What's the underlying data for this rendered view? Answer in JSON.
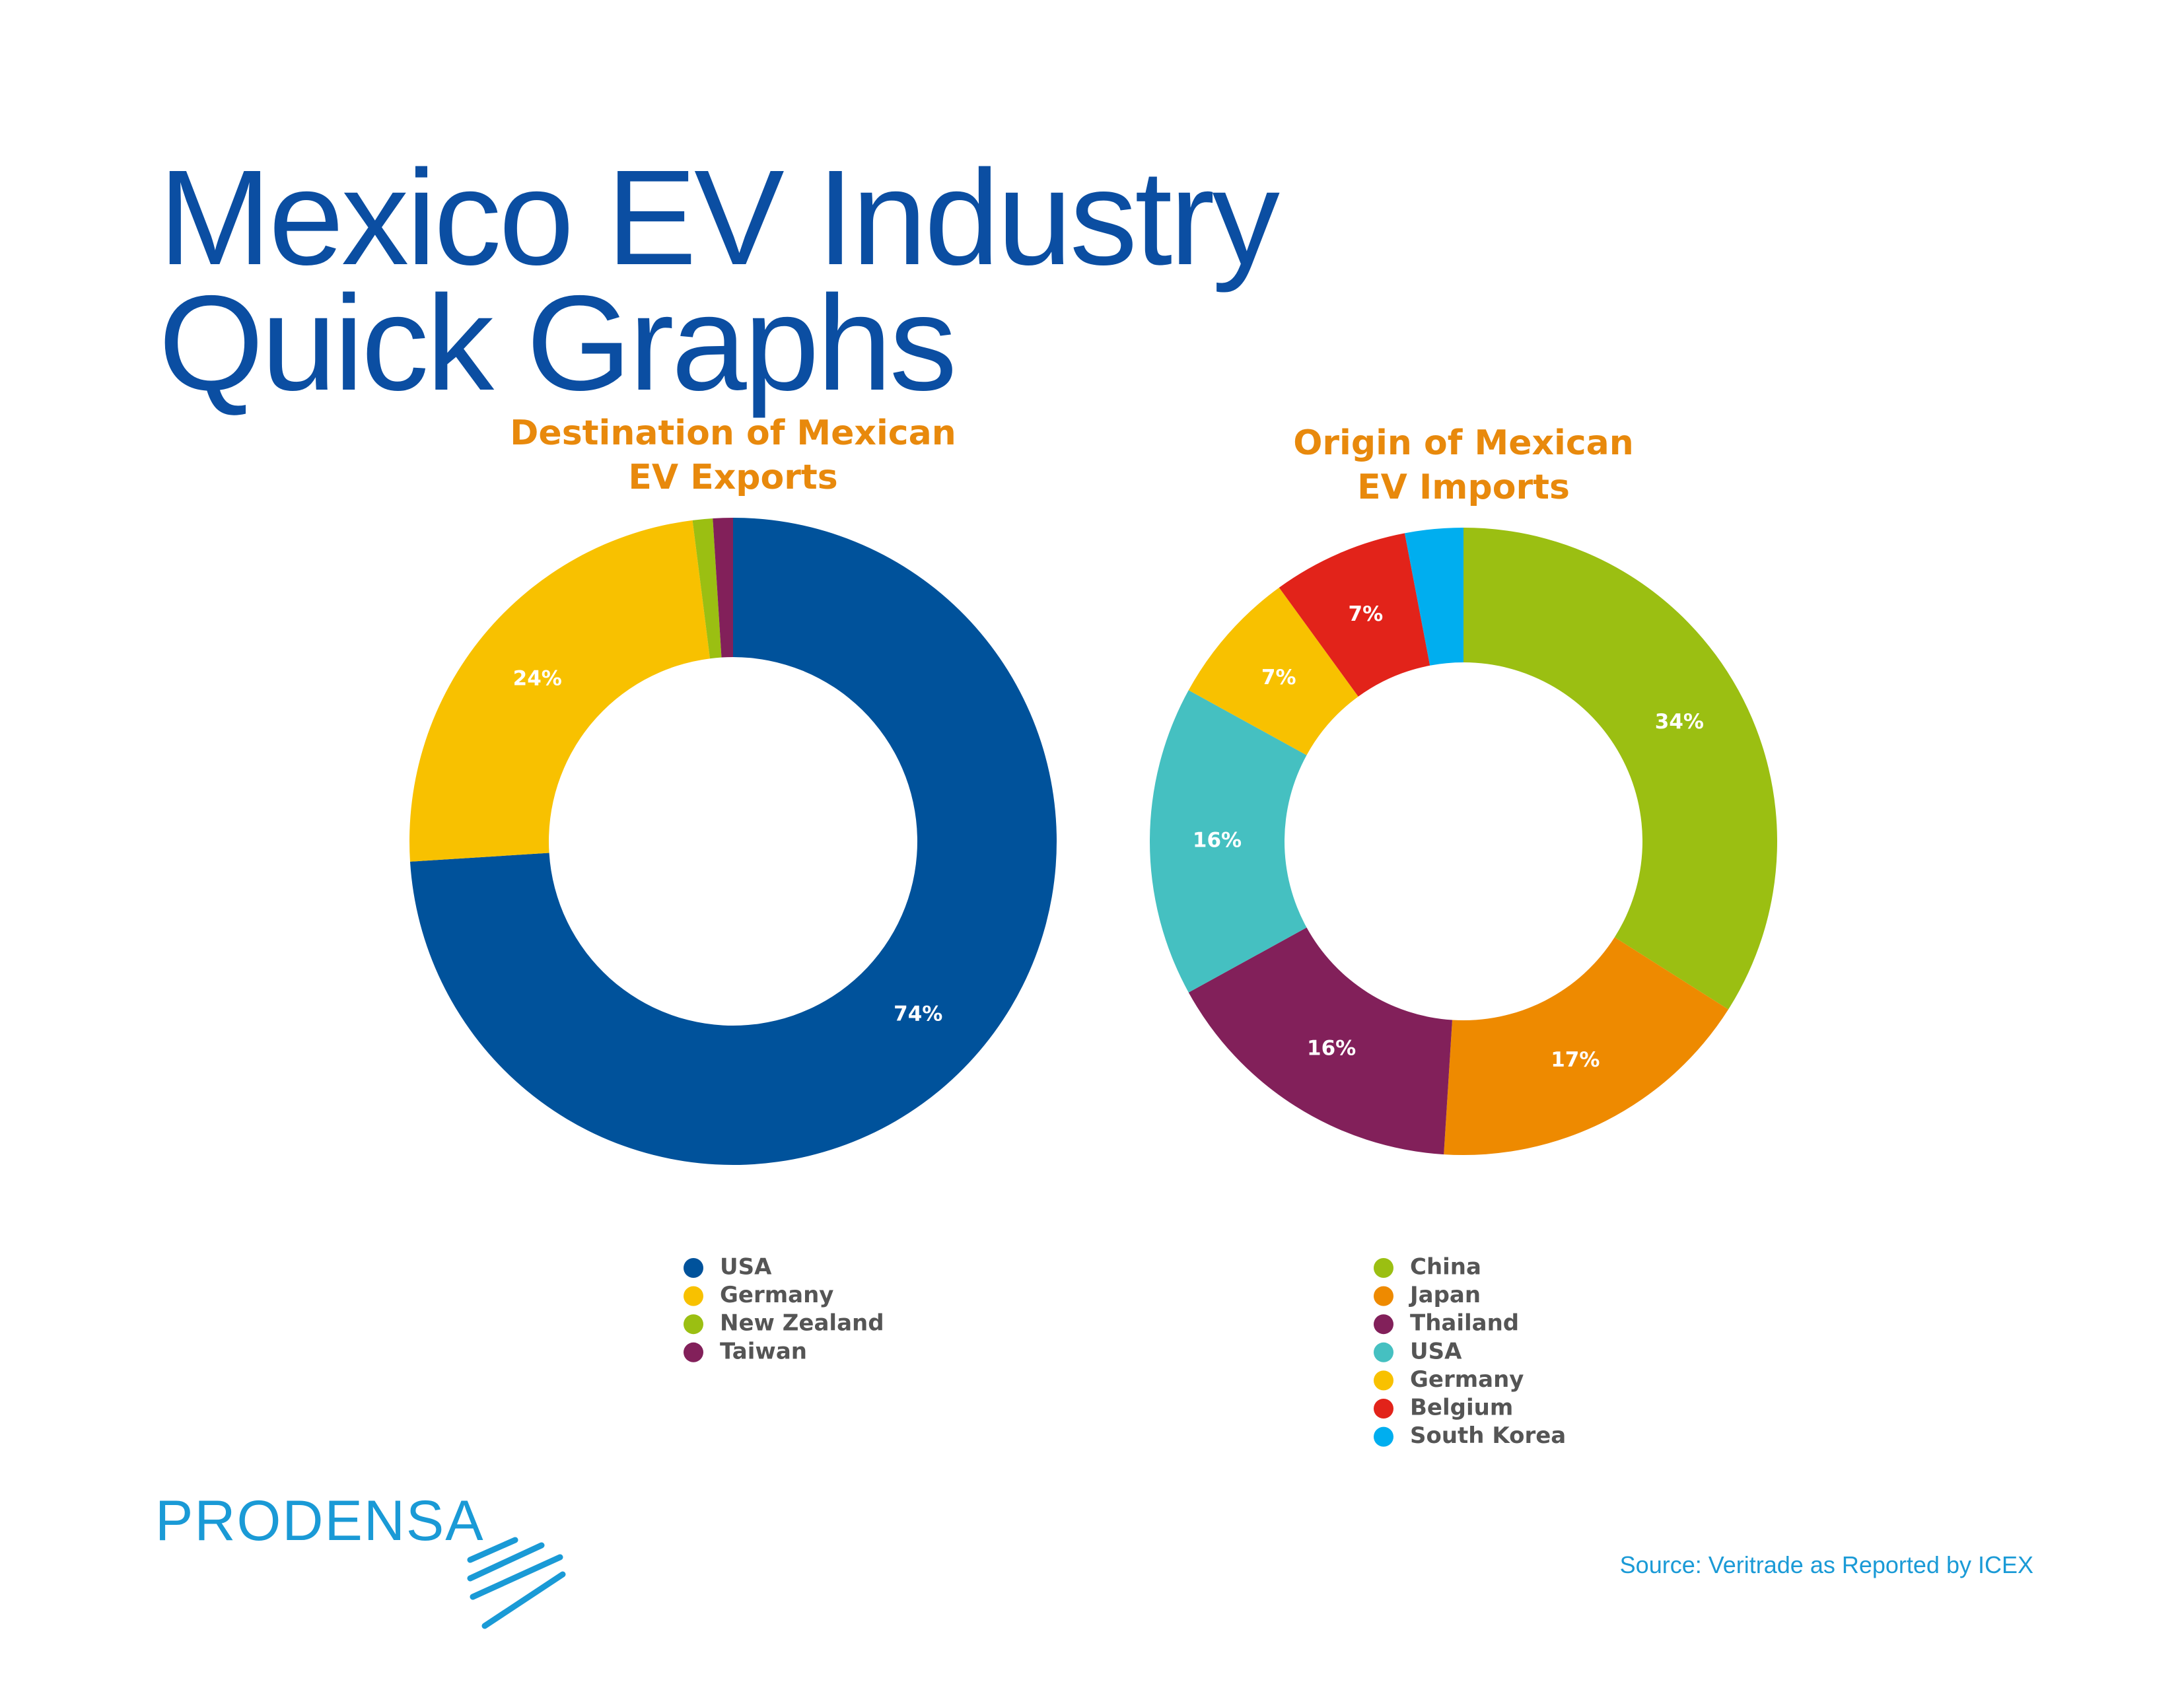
{
  "header": {
    "title": [
      "Mexico EV Industry",
      "Quick Graphs"
    ]
  },
  "chart_data": [
    {
      "type": "donut",
      "title": [
        "Destination of Mexican",
        "EV Exports"
      ],
      "categories": [
        "USA",
        "Germany",
        "New Zealand",
        "Taiwan"
      ],
      "values": [
        74,
        24,
        1,
        1
      ],
      "value_labels": [
        "74%",
        "24%",
        null,
        null
      ],
      "colors": [
        "#00529b",
        "#f8c100",
        "#9bbf12",
        "#82205a"
      ]
    },
    {
      "type": "donut",
      "title": [
        "Origin of Mexican",
        "EV Imports"
      ],
      "categories": [
        "China",
        "Japan",
        "Thailand",
        "USA",
        "Germany",
        "Belgium",
        "South Korea"
      ],
      "values": [
        34,
        17,
        16,
        16,
        7,
        7,
        3
      ],
      "value_labels": [
        "34%",
        "17%",
        "16%",
        "16%",
        "7%",
        "7%",
        null
      ],
      "colors": [
        "#9bbf12",
        "#ee8a00",
        "#82205a",
        "#45c0c1",
        "#f8c100",
        "#e2231a",
        "#00aeef"
      ]
    }
  ],
  "footer": {
    "logo": "PRODENSA",
    "source": "Source: Veritrade as Reported by ICEX"
  }
}
